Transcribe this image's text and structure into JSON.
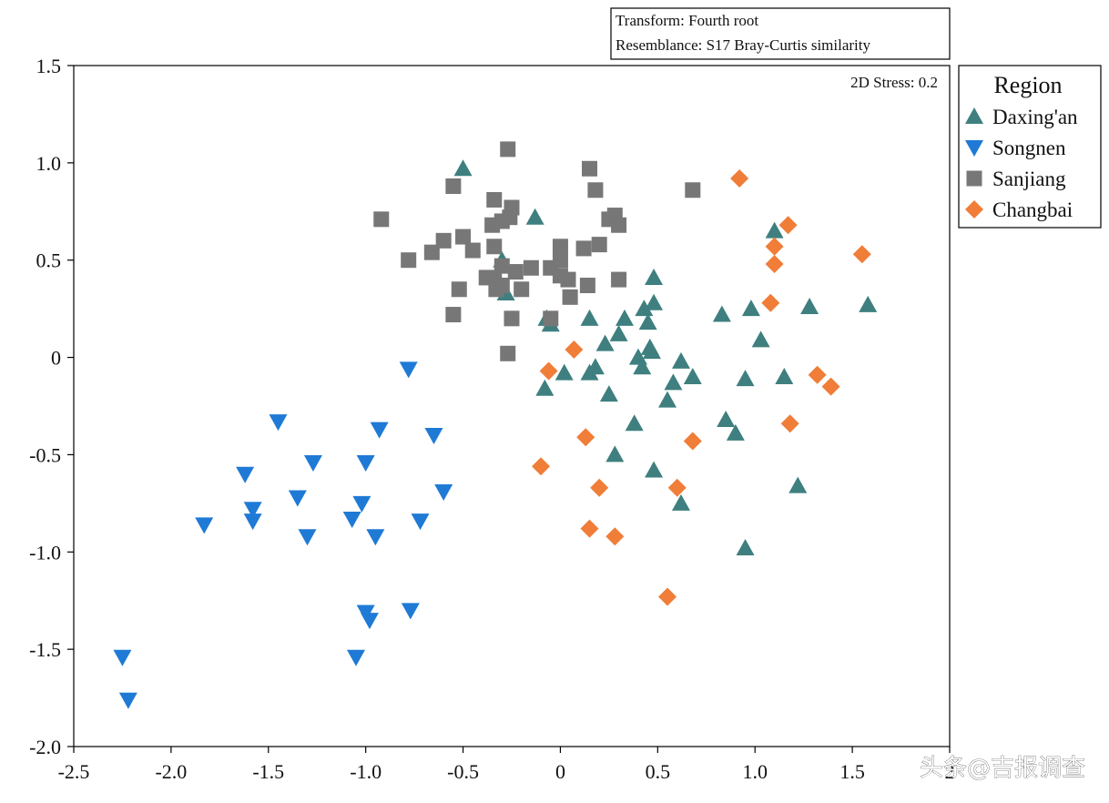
{
  "chart_data": {
    "type": "scatter",
    "title": "",
    "xlabel": "",
    "ylabel": "",
    "xlim": [
      -2.5,
      2.0
    ],
    "ylim": [
      -2.0,
      1.5
    ],
    "x_ticks": [
      -2.5,
      -2.0,
      -1.5,
      -1.0,
      -0.5,
      0,
      0.5,
      1.0,
      1.5,
      2.0
    ],
    "y_ticks": [
      1.5,
      1.0,
      0.5,
      0,
      -0.5,
      -1.0,
      -1.5,
      -2.0
    ],
    "x_tick_labels": [
      "-2.5",
      "-2.0",
      "-1.5",
      "-1.0",
      "-0.5",
      "0",
      "0.5",
      "1.0",
      "1.5",
      "2"
    ],
    "y_tick_labels": [
      "1.5",
      "1.0",
      "0.5",
      "0",
      "-0.5",
      "-1.0",
      "-1.5",
      "-2.0"
    ],
    "grid": false,
    "legend_position": "right-top",
    "legend_title": "Region",
    "info_box": [
      "Transform: Fourth root",
      "Resemblance: S17 Bray-Curtis similarity"
    ],
    "stress_label": "2D Stress: 0.2",
    "series": [
      {
        "name": "Daxing'an",
        "marker": "triangle-up",
        "color": "#3f7f7f",
        "points": [
          [
            -0.5,
            0.97
          ],
          [
            -0.13,
            0.72
          ],
          [
            -0.3,
            0.5
          ],
          [
            -0.28,
            0.33
          ],
          [
            -0.07,
            0.2
          ],
          [
            -0.05,
            0.17
          ],
          [
            0.02,
            -0.08
          ],
          [
            0.15,
            0.2
          ],
          [
            0.15,
            -0.08
          ],
          [
            0.18,
            -0.05
          ],
          [
            0.23,
            0.07
          ],
          [
            0.25,
            -0.19
          ],
          [
            0.28,
            -0.5
          ],
          [
            0.3,
            0.12
          ],
          [
            0.33,
            0.2
          ],
          [
            0.38,
            -0.34
          ],
          [
            0.4,
            0.0
          ],
          [
            0.42,
            -0.05
          ],
          [
            0.43,
            0.25
          ],
          [
            0.45,
            0.18
          ],
          [
            0.46,
            0.05
          ],
          [
            0.47,
            0.03
          ],
          [
            0.48,
            0.28
          ],
          [
            0.48,
            0.41
          ],
          [
            0.48,
            -0.58
          ],
          [
            0.55,
            -0.22
          ],
          [
            0.58,
            -0.13
          ],
          [
            0.62,
            -0.02
          ],
          [
            0.62,
            -0.75
          ],
          [
            0.68,
            -0.1
          ],
          [
            0.83,
            0.22
          ],
          [
            0.85,
            -0.32
          ],
          [
            0.9,
            -0.39
          ],
          [
            0.95,
            -0.11
          ],
          [
            0.95,
            -0.98
          ],
          [
            0.98,
            0.25
          ],
          [
            1.03,
            0.09
          ],
          [
            1.1,
            0.65
          ],
          [
            1.15,
            -0.1
          ],
          [
            1.22,
            -0.66
          ],
          [
            1.28,
            0.26
          ],
          [
            -0.08,
            -0.16
          ],
          [
            1.58,
            0.27
          ]
        ]
      },
      {
        "name": "Songnen",
        "marker": "triangle-down",
        "color": "#1f7ad6",
        "points": [
          [
            -2.25,
            -1.54
          ],
          [
            -2.22,
            -1.76
          ],
          [
            -1.83,
            -0.86
          ],
          [
            -1.62,
            -0.6
          ],
          [
            -1.58,
            -0.78
          ],
          [
            -1.58,
            -0.84
          ],
          [
            -1.45,
            -0.33
          ],
          [
            -1.35,
            -0.72
          ],
          [
            -1.3,
            -0.92
          ],
          [
            -1.27,
            -0.54
          ],
          [
            -1.07,
            -0.83
          ],
          [
            -1.02,
            -0.75
          ],
          [
            -1.0,
            -0.54
          ],
          [
            -1.0,
            -1.31
          ],
          [
            -0.98,
            -1.35
          ],
          [
            -1.05,
            -1.54
          ],
          [
            -0.95,
            -0.92
          ],
          [
            -0.93,
            -0.37
          ],
          [
            -0.78,
            -0.06
          ],
          [
            -0.77,
            -1.3
          ],
          [
            -0.72,
            -0.84
          ],
          [
            -0.65,
            -0.4
          ],
          [
            -0.6,
            -0.69
          ]
        ]
      },
      {
        "name": "Sanjiang",
        "marker": "square",
        "color": "#777777",
        "points": [
          [
            -0.27,
            1.07
          ],
          [
            0.15,
            0.97
          ],
          [
            0.18,
            0.86
          ],
          [
            0.68,
            0.86
          ],
          [
            -0.55,
            0.88
          ],
          [
            -0.34,
            0.81
          ],
          [
            -0.25,
            0.77
          ],
          [
            -0.92,
            0.71
          ],
          [
            -0.5,
            0.62
          ],
          [
            -0.35,
            0.68
          ],
          [
            -0.3,
            0.7
          ],
          [
            -0.26,
            0.72
          ],
          [
            -0.6,
            0.6
          ],
          [
            -0.66,
            0.54
          ],
          [
            -0.78,
            0.5
          ],
          [
            -0.34,
            0.57
          ],
          [
            -0.45,
            0.55
          ],
          [
            0.0,
            0.57
          ],
          [
            0.12,
            0.56
          ],
          [
            0.2,
            0.58
          ],
          [
            0.25,
            0.71
          ],
          [
            0.28,
            0.73
          ],
          [
            0.3,
            0.68
          ],
          [
            0.0,
            0.5
          ],
          [
            -0.05,
            0.46
          ],
          [
            -0.15,
            0.46
          ],
          [
            -0.23,
            0.44
          ],
          [
            -0.3,
            0.47
          ],
          [
            -0.34,
            0.41
          ],
          [
            -0.38,
            0.41
          ],
          [
            -0.3,
            0.37
          ],
          [
            -0.33,
            0.35
          ],
          [
            -0.2,
            0.35
          ],
          [
            0.0,
            0.42
          ],
          [
            0.04,
            0.4
          ],
          [
            0.05,
            0.31
          ],
          [
            0.14,
            0.37
          ],
          [
            0.3,
            0.4
          ],
          [
            -0.52,
            0.35
          ],
          [
            -0.55,
            0.22
          ],
          [
            -0.25,
            0.2
          ],
          [
            -0.05,
            0.2
          ],
          [
            -0.27,
            0.02
          ]
        ]
      },
      {
        "name": "Changbai",
        "marker": "diamond",
        "color": "#f07d38",
        "points": [
          [
            0.92,
            0.92
          ],
          [
            1.17,
            0.68
          ],
          [
            1.1,
            0.57
          ],
          [
            1.1,
            0.48
          ],
          [
            1.55,
            0.53
          ],
          [
            1.08,
            0.28
          ],
          [
            0.07,
            0.04
          ],
          [
            -0.06,
            -0.07
          ],
          [
            1.32,
            -0.09
          ],
          [
            1.39,
            -0.15
          ],
          [
            1.18,
            -0.34
          ],
          [
            0.13,
            -0.41
          ],
          [
            0.68,
            -0.43
          ],
          [
            -0.1,
            -0.56
          ],
          [
            0.2,
            -0.67
          ],
          [
            0.6,
            -0.67
          ],
          [
            0.15,
            -0.88
          ],
          [
            0.28,
            -0.92
          ],
          [
            0.55,
            -1.23
          ]
        ]
      }
    ]
  },
  "watermark": "头条@吉报调查"
}
